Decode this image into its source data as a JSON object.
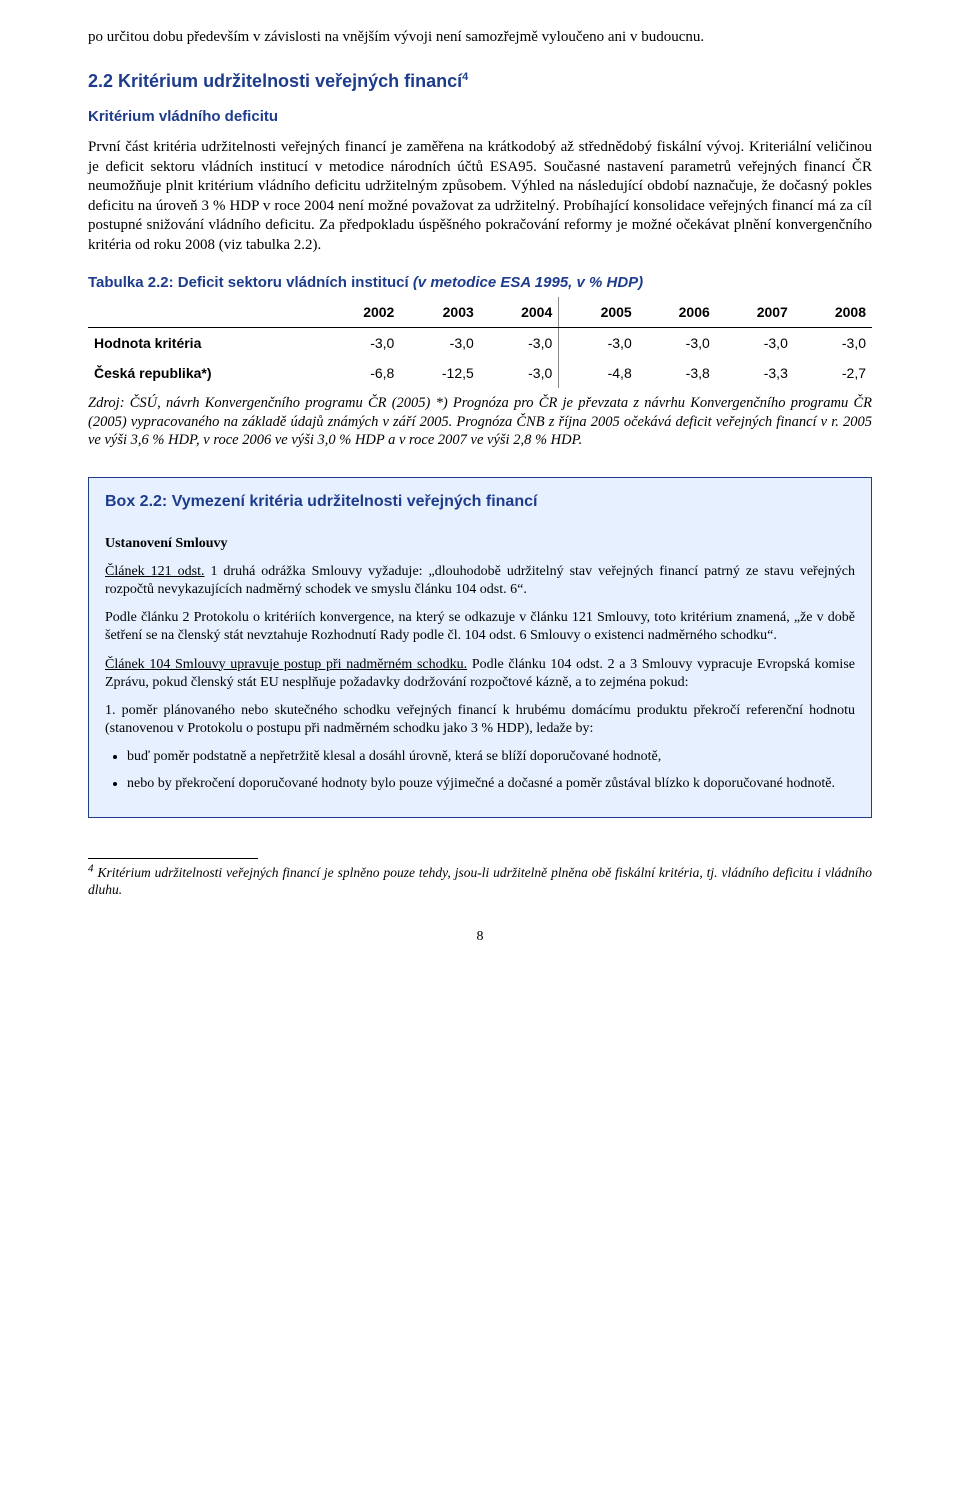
{
  "intro_para": "po určitou dobu především v závislosti na vnějším vývoji není samozřejmě vyloučeno ani v budoucnu.",
  "section": {
    "number": "2.2",
    "title_pre": "Kritérium udržitelnosti veřejných financí",
    "fn_ref": "4",
    "subheading": "Kritérium vládního deficitu",
    "body": "První část kritéria udržitelnosti veřejných financí je zaměřena na krátkodobý až střednědobý fiskální vývoj. Kriteriální veličinou je deficit sektoru vládních institucí v metodice národních účtů ESA95. Současné nastavení parametrů veřejných financí ČR neumožňuje plnit kritérium vládního deficitu udržitelným způsobem. Výhled na následující období naznačuje, že dočasný pokles deficitu na úroveň 3 % HDP v roce 2004 není možné považovat za udržitelný. Probíhající konsolidace veřejných financí má za cíl postupné snižování vládního deficitu. Za předpokladu úspěšného pokračování reformy je možné očekávat plnění konvergenčního kritéria od roku 2008 (viz tabulka 2.2)."
  },
  "table": {
    "caption_bold": "Tabulka 2.2: Deficit sektoru vládních institucí",
    "caption_ital": "(v metodice ESA 1995, v % HDP)",
    "years": [
      "2002",
      "2003",
      "2004",
      "2005",
      "2006",
      "2007",
      "2008"
    ],
    "rows": [
      {
        "label": "Hodnota kritéria",
        "vals": [
          "-3,0",
          "-3,0",
          "-3,0",
          "-3,0",
          "-3,0",
          "-3,0",
          "-3,0"
        ]
      },
      {
        "label": "Česká republika*)",
        "vals": [
          "-6,8",
          "-12,5",
          "-3,0",
          "-4,8",
          "-3,8",
          "-3,3",
          "-2,7"
        ]
      }
    ],
    "note": "Zdroj: ČSÚ, návrh Konvergenčního programu ČR (2005)\n*) Prognóza pro ČR je převzata z návrhu Konvergenčního programu ČR (2005) vypracovaného na základě údajů známých v září 2005. Prognóza ČNB z října 2005 očekává deficit veřejných financí v r. 2005 ve výši 3,6 % HDP,  v roce 2006 ve výši 3,0 % HDP a v roce 2007 ve výši 2,8 % HDP."
  },
  "box": {
    "title": "Box 2.2: Vymezení kritéria udržitelnosti veřejných financí",
    "p1_head": "Ustanovení Smlouvy",
    "p1": "Článek 121 odst. 1 druhá odrážka Smlouvy vyžaduje: „dlouhodobě udržitelný stav veřejných financí patrný ze stavu veřejných rozpočtů nevykazujících nadměrný schodek ve smyslu článku 104 odst. 6“.",
    "p1_underlined": "Článek 121 odst.",
    "p2": "Podle článku 2 Protokolu o kritériích konvergence, na který se odkazuje v článku 121 Smlouvy, toto kritérium znamená, „že v době šetření se na členský stát nevztahuje Rozhodnutí Rady podle čl. 104 odst. 6 Smlouvy o existenci nadměrného schodku“.",
    "p3": "Článek 104 Smlouvy upravuje postup při nadměrném schodku. Podle článku 104 odst. 2 a 3 Smlouvy vypracuje Evropská komise Zprávu, pokud členský stát EU nesplňuje požadavky dodržování rozpočtové kázně, a to zejména pokud:",
    "p3_underlined": "Článek 104 Smlouvy upravuje postup při nadměrném schodku.",
    "item1": "1.       poměr plánovaného nebo skutečného schodku veřejných financí k hrubému domácímu produktu překročí referenční hodnotu (stanovenou v Protokolu o postupu při nadměrném schodku jako 3 % HDP), ledaže by:",
    "bullets": [
      "buď poměr podstatně a nepřetržitě klesal a dosáhl úrovně, která se blíží doporučované hodnotě,",
      "nebo by překročení doporučované hodnoty bylo pouze výjimečné a dočasné a poměr zůstával blízko k doporučované hodnotě."
    ]
  },
  "footnote": {
    "num": "4",
    "text": "Kritérium udržitelnosti veřejných financí je splněno pouze tehdy, jsou-li udržitelně plněna obě fiskální kritéria, tj. vládního deficitu i vládního dluhu."
  },
  "pagenum": "8"
}
